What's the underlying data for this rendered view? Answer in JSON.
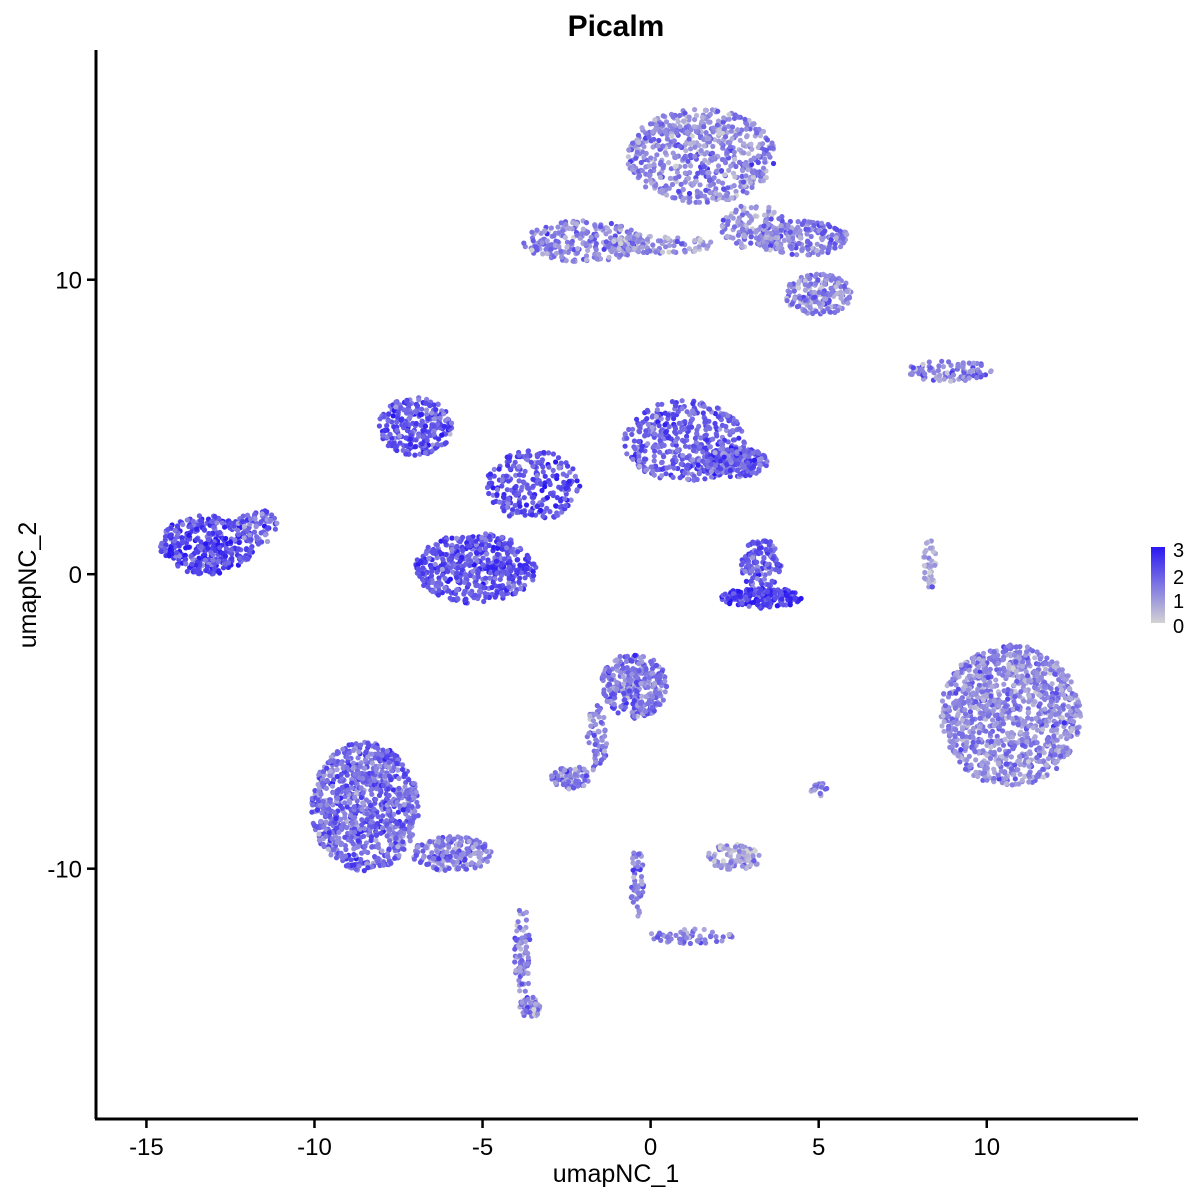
{
  "chart_data": {
    "type": "scatter",
    "title": "Picalm",
    "xlabel": "umapNC_1",
    "ylabel": "umapNC_2",
    "xlim": [
      -16.5,
      14.5
    ],
    "ylim": [
      -18.5,
      17.8
    ],
    "x_ticks": [
      -15,
      -10,
      -5,
      0,
      5,
      10
    ],
    "y_ticks": [
      -10,
      0,
      10
    ],
    "grid": false,
    "color_scale": {
      "low": "#d3d3d3",
      "high": "#2a18f2",
      "min": 0,
      "max": 3.2
    },
    "legend": {
      "position": "right",
      "labels": [
        "3",
        "2",
        "1",
        "0"
      ]
    },
    "clusters": [
      {
        "name": "cluster-top-body",
        "cx": 1.5,
        "cy": 14.2,
        "rx": 2.2,
        "ry": 1.6,
        "n": 600,
        "level": 1.3
      },
      {
        "name": "cluster-top-arm-left",
        "cx": -2.0,
        "cy": 11.3,
        "rx": 1.8,
        "ry": 0.7,
        "n": 250,
        "level": 1.3
      },
      {
        "name": "cluster-top-bridge",
        "cx": 0.3,
        "cy": 11.2,
        "rx": 1.6,
        "ry": 0.3,
        "n": 90,
        "level": 1.1
      },
      {
        "name": "cluster-top-arm-right",
        "cx": 4.5,
        "cy": 11.4,
        "rx": 1.4,
        "ry": 0.6,
        "n": 200,
        "level": 1.5
      },
      {
        "name": "cluster-top-lobe-right",
        "cx": 5.0,
        "cy": 9.5,
        "rx": 1.0,
        "ry": 0.7,
        "n": 180,
        "level": 1.3
      },
      {
        "name": "cluster-top-stem",
        "cx": 3.1,
        "cy": 11.8,
        "rx": 1.0,
        "ry": 0.8,
        "n": 120,
        "level": 1.2
      },
      {
        "name": "cluster-center-left-lobe",
        "cx": -7.0,
        "cy": 5.0,
        "rx": 1.1,
        "ry": 1.0,
        "n": 260,
        "level": 2.1
      },
      {
        "name": "cluster-center-right-lobe",
        "cx": 1.0,
        "cy": 4.5,
        "rx": 1.8,
        "ry": 1.4,
        "n": 420,
        "level": 2.0
      },
      {
        "name": "cluster-center-right-tail",
        "cx": 2.5,
        "cy": 3.8,
        "rx": 1.0,
        "ry": 0.5,
        "n": 200,
        "level": 2.0
      },
      {
        "name": "cluster-center-hub",
        "cx": -3.5,
        "cy": 3.0,
        "rx": 1.4,
        "ry": 1.2,
        "n": 260,
        "level": 2.2
      },
      {
        "name": "cluster-center-bottom-ring",
        "cx": -5.2,
        "cy": 0.2,
        "rx": 1.8,
        "ry": 1.2,
        "n": 520,
        "level": 2.2
      },
      {
        "name": "cluster-left",
        "cx": -13.2,
        "cy": 1.0,
        "rx": 1.4,
        "ry": 1.0,
        "n": 380,
        "level": 2.4
      },
      {
        "name": "cluster-left-spur",
        "cx": -11.7,
        "cy": 1.6,
        "rx": 0.6,
        "ry": 0.6,
        "n": 70,
        "level": 1.8
      },
      {
        "name": "cluster-small-center-right",
        "cx": 3.3,
        "cy": 0.3,
        "rx": 0.6,
        "ry": 0.9,
        "n": 130,
        "level": 2.0
      },
      {
        "name": "cluster-small-center-right-base",
        "cx": 3.3,
        "cy": -0.8,
        "rx": 1.2,
        "ry": 0.35,
        "n": 160,
        "level": 2.6
      },
      {
        "name": "cluster-right-large",
        "cx": 10.7,
        "cy": -4.8,
        "rx": 2.1,
        "ry": 2.4,
        "n": 1100,
        "level": 1.3
      },
      {
        "name": "cluster-right-strip",
        "cx": 8.9,
        "cy": 6.9,
        "rx": 1.3,
        "ry": 0.35,
        "n": 90,
        "level": 1.4
      },
      {
        "name": "cluster-right-thin",
        "cx": 8.3,
        "cy": 0.3,
        "rx": 0.2,
        "ry": 0.9,
        "n": 40,
        "level": 0.6
      },
      {
        "name": "cluster-mid-bottom",
        "cx": -0.5,
        "cy": -3.8,
        "rx": 1.0,
        "ry": 1.1,
        "n": 300,
        "level": 1.6
      },
      {
        "name": "cluster-mid-bottom-arm",
        "cx": -1.6,
        "cy": -5.6,
        "rx": 0.3,
        "ry": 1.2,
        "n": 60,
        "level": 1.5
      },
      {
        "name": "cluster-mid-bottom-foot",
        "cx": -2.4,
        "cy": -6.9,
        "rx": 0.6,
        "ry": 0.4,
        "n": 70,
        "level": 1.4
      },
      {
        "name": "cluster-bottom-left",
        "cx": -8.5,
        "cy": -7.9,
        "rx": 1.6,
        "ry": 2.2,
        "n": 900,
        "level": 1.8
      },
      {
        "name": "cluster-bottom-left-tail",
        "cx": -5.9,
        "cy": -9.5,
        "rx": 1.2,
        "ry": 0.6,
        "n": 180,
        "level": 1.5
      },
      {
        "name": "cluster-bottom-left-stalk",
        "cx": -3.8,
        "cy": -12.8,
        "rx": 0.25,
        "ry": 1.6,
        "n": 70,
        "level": 1.3
      },
      {
        "name": "cluster-bottom-left-foot",
        "cx": -3.6,
        "cy": -14.7,
        "rx": 0.3,
        "ry": 0.4,
        "n": 50,
        "level": 1.3
      },
      {
        "name": "cluster-bottom-mid-stalk",
        "cx": -0.4,
        "cy": -10.5,
        "rx": 0.2,
        "ry": 1.2,
        "n": 50,
        "level": 1.4
      },
      {
        "name": "cluster-bottom-mid-branch",
        "cx": 1.2,
        "cy": -12.3,
        "rx": 1.3,
        "ry": 0.25,
        "n": 60,
        "level": 1.4
      },
      {
        "name": "cluster-bottom-center-small",
        "cx": 2.5,
        "cy": -9.6,
        "rx": 0.8,
        "ry": 0.45,
        "n": 90,
        "level": 0.8
      },
      {
        "name": "cluster-small-right-mid",
        "cx": 5.0,
        "cy": -7.3,
        "rx": 0.25,
        "ry": 0.25,
        "n": 20,
        "level": 1.2
      }
    ]
  }
}
